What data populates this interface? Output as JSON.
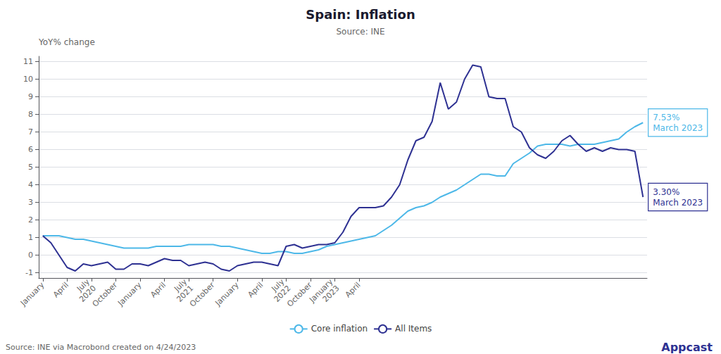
{
  "chart_data": {
    "type": "line",
    "title": "Spain: Inflation",
    "subtitle": "Source: INE",
    "y_label": "YoY% change",
    "footer": "Source: INE via Macrobond created on 4/24/2023",
    "logo": "Appcast",
    "categories": [
      "January",
      null,
      null,
      "April",
      null,
      null,
      "July\n2020",
      null,
      null,
      "October",
      null,
      null,
      "January",
      null,
      null,
      "April",
      null,
      null,
      "July\n2021",
      null,
      null,
      "October",
      null,
      null,
      "January",
      null,
      null,
      "April",
      null,
      null,
      "July\n2022",
      null,
      null,
      "October",
      null,
      null,
      "January\n2023",
      null,
      null,
      "April",
      null,
      null,
      null,
      null,
      null,
      null,
      null,
      null,
      null,
      null,
      null,
      null,
      null,
      null,
      null,
      null,
      null,
      null,
      null,
      null,
      null,
      null,
      null,
      null,
      null,
      null,
      null,
      null,
      null,
      null,
      null,
      null,
      null,
      null,
      null
    ],
    "series": [
      {
        "name": "Core inflation",
        "color": "#4db8e8",
        "annotation": "7.53%\nMarch 2023",
        "values": [
          1.1,
          1.1,
          1.1,
          1.0,
          0.9,
          0.9,
          0.8,
          0.7,
          0.6,
          0.5,
          0.4,
          0.4,
          0.4,
          0.4,
          0.5,
          0.5,
          0.5,
          0.5,
          0.6,
          0.6,
          0.6,
          0.6,
          0.5,
          0.5,
          0.4,
          0.3,
          0.2,
          0.1,
          0.1,
          0.2,
          0.2,
          0.1,
          0.1,
          0.2,
          0.3,
          0.5,
          0.6,
          0.7,
          0.8,
          0.9,
          1.0,
          1.1,
          1.4,
          1.7,
          2.1,
          2.5,
          2.7,
          2.8,
          3.0,
          3.3,
          3.5,
          3.7,
          4.0,
          4.3,
          4.6,
          4.6,
          4.5,
          4.5,
          5.2,
          5.5,
          5.8,
          6.2,
          6.3,
          6.3,
          6.3,
          6.2,
          6.3,
          6.3,
          6.3,
          6.4,
          6.5,
          6.6,
          7.0,
          7.3,
          7.53
        ]
      },
      {
        "name": "All Items",
        "color": "#2e3192",
        "annotation": "3.30%\nMarch 2023",
        "values": [
          1.1,
          0.7,
          0.0,
          -0.7,
          -0.9,
          -0.5,
          -0.6,
          -0.5,
          -0.4,
          -0.8,
          -0.8,
          -0.5,
          -0.5,
          -0.6,
          -0.4,
          -0.2,
          -0.3,
          -0.3,
          -0.6,
          -0.5,
          -0.4,
          -0.5,
          -0.8,
          -0.9,
          -0.6,
          -0.5,
          -0.4,
          -0.4,
          -0.5,
          -0.6,
          0.5,
          0.6,
          0.4,
          0.5,
          0.6,
          0.6,
          0.7,
          1.3,
          2.2,
          2.7,
          2.7,
          2.7,
          2.8,
          3.3,
          4.0,
          5.4,
          6.5,
          6.7,
          7.6,
          9.8,
          8.3,
          8.7,
          10.0,
          10.8,
          10.7,
          9.0,
          8.9,
          8.9,
          7.3,
          7.0,
          6.1,
          5.7,
          5.5,
          5.9,
          6.5,
          6.8,
          6.3,
          5.9,
          6.1,
          5.9,
          6.1,
          6.0,
          6.0,
          5.9,
          3.3
        ]
      }
    ],
    "ylim": [
      -1.3,
      11.3
    ],
    "yticks": [
      -1,
      0,
      1,
      2,
      3,
      4,
      5,
      6,
      7,
      8,
      9,
      10,
      11
    ],
    "grid": true,
    "legend": "bottom"
  }
}
